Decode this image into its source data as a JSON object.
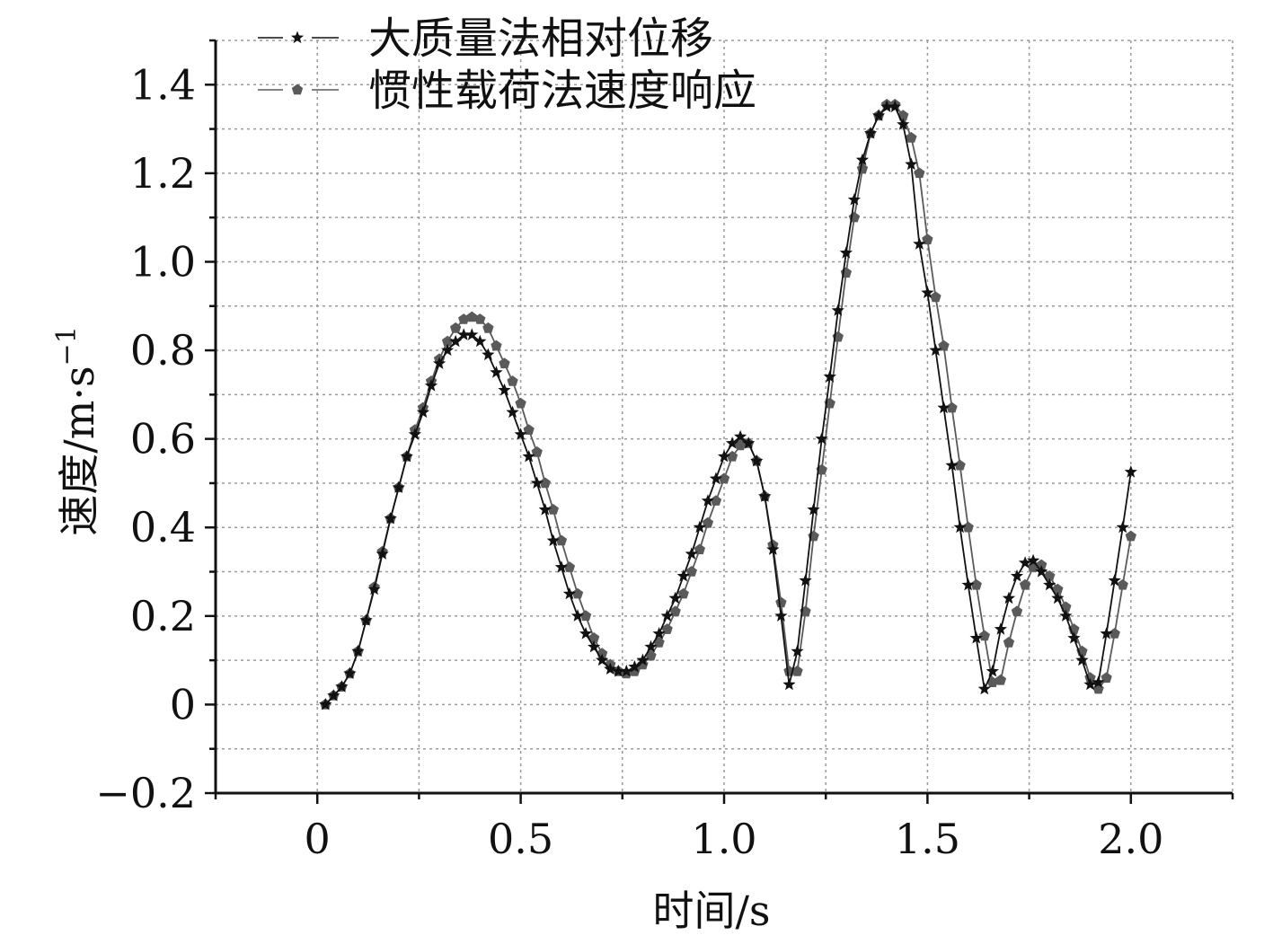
{
  "chart_data": {
    "type": "line",
    "xlabel": "时间/s",
    "ylabel_base": "速度/m·s",
    "ylabel_sup": "−1",
    "xlim": [
      -0.25,
      2.25
    ],
    "ylim": [
      -0.2,
      1.5
    ],
    "x_ticks": [
      0,
      0.5,
      1.0,
      1.5,
      2.0
    ],
    "x_tick_labels": [
      "0",
      "0.5",
      "1.0",
      "1.5",
      "2.0"
    ],
    "y_ticks": [
      -0.2,
      0,
      0.2,
      0.4,
      0.6,
      0.8,
      1.0,
      1.2,
      1.4
    ],
    "y_tick_labels": [
      "−0.2",
      "0",
      "0.2",
      "0.4",
      "0.6",
      "0.8",
      "1.0",
      "1.2",
      "1.4"
    ],
    "grid": true,
    "legend_position": "top-left",
    "series": [
      {
        "name": "大质量法相对位移",
        "marker": "star",
        "color": "#111111",
        "points": [
          [
            0.02,
            0.0
          ],
          [
            0.04,
            0.02
          ],
          [
            0.06,
            0.04
          ],
          [
            0.08,
            0.07
          ],
          [
            0.1,
            0.12
          ],
          [
            0.12,
            0.19
          ],
          [
            0.14,
            0.26
          ],
          [
            0.16,
            0.34
          ],
          [
            0.18,
            0.42
          ],
          [
            0.2,
            0.49
          ],
          [
            0.22,
            0.56
          ],
          [
            0.24,
            0.61
          ],
          [
            0.26,
            0.66
          ],
          [
            0.28,
            0.72
          ],
          [
            0.3,
            0.77
          ],
          [
            0.32,
            0.8
          ],
          [
            0.34,
            0.82
          ],
          [
            0.36,
            0.835
          ],
          [
            0.38,
            0.835
          ],
          [
            0.4,
            0.82
          ],
          [
            0.42,
            0.79
          ],
          [
            0.44,
            0.75
          ],
          [
            0.46,
            0.71
          ],
          [
            0.48,
            0.66
          ],
          [
            0.5,
            0.61
          ],
          [
            0.52,
            0.56
          ],
          [
            0.54,
            0.5
          ],
          [
            0.56,
            0.44
          ],
          [
            0.58,
            0.37
          ],
          [
            0.6,
            0.31
          ],
          [
            0.62,
            0.25
          ],
          [
            0.64,
            0.2
          ],
          [
            0.66,
            0.16
          ],
          [
            0.68,
            0.13
          ],
          [
            0.7,
            0.1
          ],
          [
            0.72,
            0.08
          ],
          [
            0.74,
            0.075
          ],
          [
            0.76,
            0.075
          ],
          [
            0.78,
            0.085
          ],
          [
            0.8,
            0.1
          ],
          [
            0.82,
            0.13
          ],
          [
            0.84,
            0.16
          ],
          [
            0.86,
            0.2
          ],
          [
            0.88,
            0.24
          ],
          [
            0.9,
            0.29
          ],
          [
            0.92,
            0.34
          ],
          [
            0.94,
            0.4
          ],
          [
            0.96,
            0.46
          ],
          [
            0.98,
            0.51
          ],
          [
            1.0,
            0.56
          ],
          [
            1.02,
            0.59
          ],
          [
            1.04,
            0.605
          ],
          [
            1.06,
            0.59
          ],
          [
            1.08,
            0.55
          ],
          [
            1.1,
            0.47
          ],
          [
            1.12,
            0.35
          ],
          [
            1.14,
            0.2
          ],
          [
            1.16,
            0.045
          ],
          [
            1.18,
            0.12
          ],
          [
            1.2,
            0.28
          ],
          [
            1.22,
            0.44
          ],
          [
            1.24,
            0.6
          ],
          [
            1.26,
            0.74
          ],
          [
            1.28,
            0.89
          ],
          [
            1.3,
            1.02
          ],
          [
            1.32,
            1.14
          ],
          [
            1.34,
            1.23
          ],
          [
            1.36,
            1.29
          ],
          [
            1.38,
            1.33
          ],
          [
            1.4,
            1.35
          ],
          [
            1.42,
            1.35
          ],
          [
            1.44,
            1.31
          ],
          [
            1.46,
            1.22
          ],
          [
            1.48,
            1.04
          ],
          [
            1.5,
            0.93
          ],
          [
            1.52,
            0.8
          ],
          [
            1.54,
            0.67
          ],
          [
            1.56,
            0.54
          ],
          [
            1.58,
            0.4
          ],
          [
            1.6,
            0.27
          ],
          [
            1.62,
            0.15
          ],
          [
            1.64,
            0.035
          ],
          [
            1.66,
            0.075
          ],
          [
            1.68,
            0.17
          ],
          [
            1.7,
            0.24
          ],
          [
            1.72,
            0.29
          ],
          [
            1.74,
            0.32
          ],
          [
            1.76,
            0.325
          ],
          [
            1.78,
            0.3
          ],
          [
            1.8,
            0.27
          ],
          [
            1.82,
            0.24
          ],
          [
            1.84,
            0.2
          ],
          [
            1.86,
            0.15
          ],
          [
            1.88,
            0.1
          ],
          [
            1.9,
            0.045
          ],
          [
            1.92,
            0.05
          ],
          [
            1.94,
            0.16
          ],
          [
            1.96,
            0.28
          ],
          [
            1.98,
            0.4
          ],
          [
            2.0,
            0.525
          ]
        ]
      },
      {
        "name": "惯性载荷法速度响应",
        "marker": "pentagon",
        "color": "#5a5a5a",
        "points": [
          [
            0.02,
            0.0
          ],
          [
            0.04,
            0.02
          ],
          [
            0.06,
            0.04
          ],
          [
            0.08,
            0.07
          ],
          [
            0.1,
            0.12
          ],
          [
            0.12,
            0.19
          ],
          [
            0.14,
            0.265
          ],
          [
            0.16,
            0.345
          ],
          [
            0.18,
            0.42
          ],
          [
            0.2,
            0.49
          ],
          [
            0.22,
            0.56
          ],
          [
            0.24,
            0.62
          ],
          [
            0.26,
            0.67
          ],
          [
            0.28,
            0.73
          ],
          [
            0.3,
            0.78
          ],
          [
            0.32,
            0.82
          ],
          [
            0.34,
            0.85
          ],
          [
            0.36,
            0.87
          ],
          [
            0.38,
            0.875
          ],
          [
            0.4,
            0.87
          ],
          [
            0.42,
            0.85
          ],
          [
            0.44,
            0.81
          ],
          [
            0.46,
            0.77
          ],
          [
            0.48,
            0.73
          ],
          [
            0.5,
            0.68
          ],
          [
            0.52,
            0.62
          ],
          [
            0.54,
            0.57
          ],
          [
            0.56,
            0.5
          ],
          [
            0.58,
            0.44
          ],
          [
            0.6,
            0.37
          ],
          [
            0.62,
            0.31
          ],
          [
            0.64,
            0.25
          ],
          [
            0.66,
            0.2
          ],
          [
            0.68,
            0.15
          ],
          [
            0.7,
            0.115
          ],
          [
            0.72,
            0.09
          ],
          [
            0.74,
            0.075
          ],
          [
            0.76,
            0.07
          ],
          [
            0.78,
            0.075
          ],
          [
            0.8,
            0.09
          ],
          [
            0.82,
            0.11
          ],
          [
            0.84,
            0.14
          ],
          [
            0.86,
            0.17
          ],
          [
            0.88,
            0.21
          ],
          [
            0.9,
            0.25
          ],
          [
            0.92,
            0.3
          ],
          [
            0.94,
            0.35
          ],
          [
            0.96,
            0.41
          ],
          [
            0.98,
            0.46
          ],
          [
            1.0,
            0.51
          ],
          [
            1.02,
            0.56
          ],
          [
            1.04,
            0.585
          ],
          [
            1.06,
            0.59
          ],
          [
            1.08,
            0.55
          ],
          [
            1.1,
            0.47
          ],
          [
            1.12,
            0.36
          ],
          [
            1.14,
            0.23
          ],
          [
            1.16,
            0.075
          ],
          [
            1.18,
            0.075
          ],
          [
            1.2,
            0.21
          ],
          [
            1.22,
            0.38
          ],
          [
            1.24,
            0.53
          ],
          [
            1.26,
            0.68
          ],
          [
            1.28,
            0.83
          ],
          [
            1.3,
            0.975
          ],
          [
            1.32,
            1.1
          ],
          [
            1.34,
            1.21
          ],
          [
            1.36,
            1.29
          ],
          [
            1.38,
            1.33
          ],
          [
            1.4,
            1.355
          ],
          [
            1.42,
            1.355
          ],
          [
            1.44,
            1.33
          ],
          [
            1.46,
            1.28
          ],
          [
            1.48,
            1.2
          ],
          [
            1.5,
            1.05
          ],
          [
            1.52,
            0.92
          ],
          [
            1.54,
            0.81
          ],
          [
            1.56,
            0.67
          ],
          [
            1.58,
            0.54
          ],
          [
            1.6,
            0.4
          ],
          [
            1.62,
            0.27
          ],
          [
            1.64,
            0.155
          ],
          [
            1.66,
            0.05
          ],
          [
            1.68,
            0.055
          ],
          [
            1.7,
            0.14
          ],
          [
            1.72,
            0.21
          ],
          [
            1.74,
            0.27
          ],
          [
            1.76,
            0.31
          ],
          [
            1.78,
            0.315
          ],
          [
            1.8,
            0.29
          ],
          [
            1.82,
            0.26
          ],
          [
            1.84,
            0.22
          ],
          [
            1.86,
            0.17
          ],
          [
            1.88,
            0.12
          ],
          [
            1.9,
            0.06
          ],
          [
            1.92,
            0.035
          ],
          [
            1.94,
            0.06
          ],
          [
            1.96,
            0.16
          ],
          [
            1.98,
            0.27
          ],
          [
            2.0,
            0.38
          ]
        ]
      }
    ]
  }
}
